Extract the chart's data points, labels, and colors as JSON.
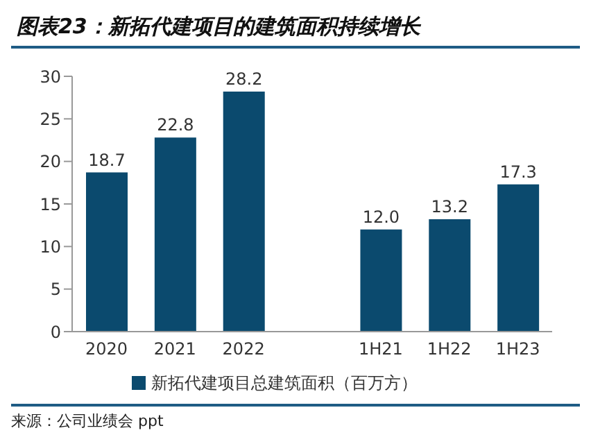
{
  "chart_data": {
    "type": "bar",
    "title": "图表23：新拓代建项目的建筑面积持续增长",
    "categories": [
      "2020",
      "2021",
      "2022",
      null,
      "1H21",
      "1H22",
      "1H23"
    ],
    "series": [
      {
        "name": "新拓代建项目总建筑面积（百万方）",
        "color": "#0b4a6e",
        "values": [
          18.7,
          22.8,
          28.2,
          null,
          12.0,
          13.2,
          17.3
        ],
        "value_labels": [
          "18.7",
          "22.8",
          "28.2",
          null,
          "12.0",
          "13.2",
          "17.3"
        ]
      }
    ],
    "ylim": [
      0,
      30
    ],
    "yticks": [
      0,
      5,
      10,
      15,
      20,
      25,
      30
    ],
    "grid": false,
    "legend": "bottom",
    "annotations": [
      "来源：公司业绩会 ppt"
    ]
  }
}
